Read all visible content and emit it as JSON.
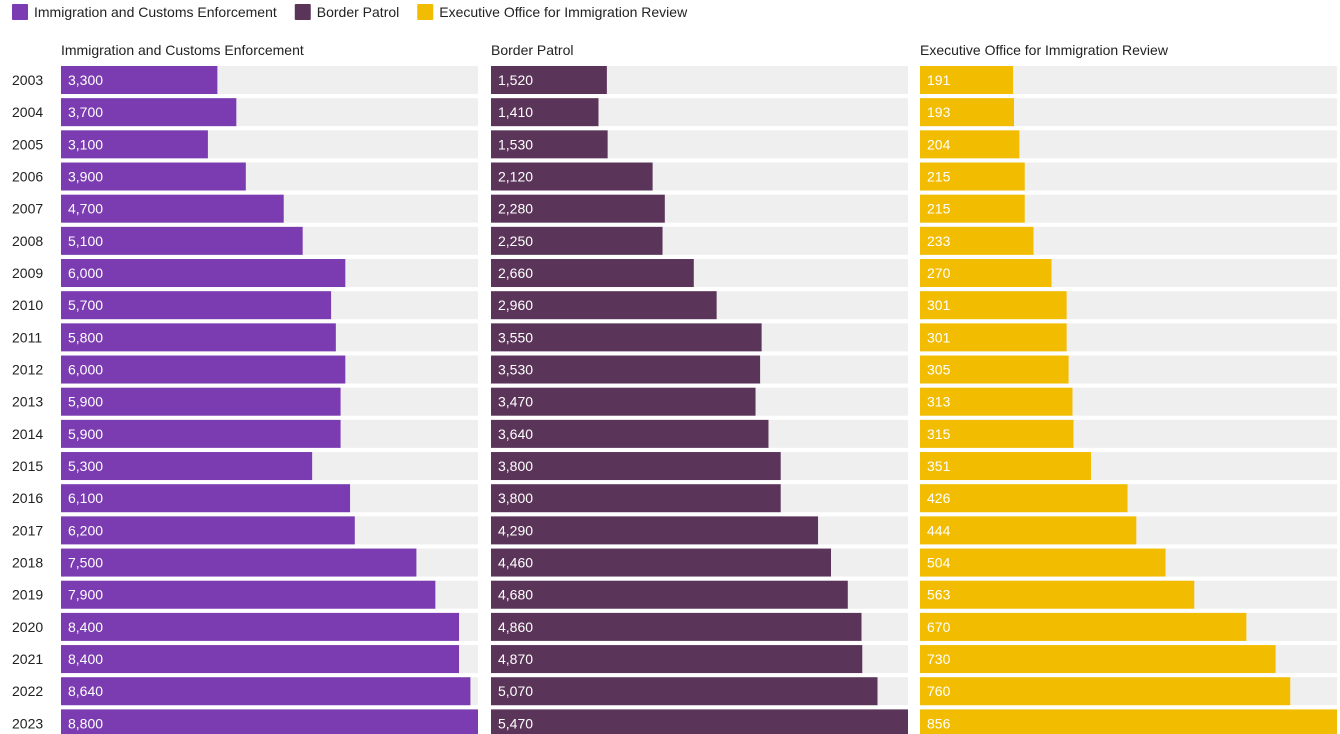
{
  "chart_data": {
    "type": "bar",
    "orientation": "horizontal",
    "layout": "small-multiples",
    "categories": [
      "2003",
      "2004",
      "2005",
      "2006",
      "2007",
      "2008",
      "2009",
      "2010",
      "2011",
      "2012",
      "2013",
      "2014",
      "2015",
      "2016",
      "2017",
      "2018",
      "2019",
      "2020",
      "2021",
      "2022",
      "2023"
    ],
    "series": [
      {
        "name": "Immigration and Customs Enforcement",
        "color": "#7a3cb0",
        "values": [
          3300,
          3700,
          3100,
          3900,
          4700,
          5100,
          6000,
          5700,
          5800,
          6000,
          5900,
          5900,
          5300,
          6100,
          6200,
          7500,
          7900,
          8400,
          8400,
          8640,
          8800
        ],
        "labels": [
          "3,300",
          "3,700",
          "3,100",
          "3,900",
          "4,700",
          "5,100",
          "6,000",
          "5,700",
          "5,800",
          "6,000",
          "5,900",
          "5,900",
          "5,300",
          "6,100",
          "6,200",
          "7,500",
          "7,900",
          "8,400",
          "8,400",
          "8,640",
          "8,800"
        ]
      },
      {
        "name": "Border Patrol",
        "color": "#5b3559",
        "values": [
          1520,
          1410,
          1530,
          2120,
          2280,
          2250,
          2660,
          2960,
          3550,
          3530,
          3470,
          3640,
          3800,
          3800,
          4290,
          4460,
          4680,
          4860,
          4870,
          5070,
          5470
        ],
        "labels": [
          "1,520",
          "1,410",
          "1,530",
          "2,120",
          "2,280",
          "2,250",
          "2,660",
          "2,960",
          "3,550",
          "3,530",
          "3,470",
          "3,640",
          "3,800",
          "3,800",
          "4,290",
          "4,460",
          "4,680",
          "4,860",
          "4,870",
          "5,070",
          "5,470"
        ]
      },
      {
        "name": "Executive Office for Immigration Review",
        "color": "#f2bd00",
        "values": [
          191,
          193,
          204,
          215,
          215,
          233,
          270,
          301,
          301,
          305,
          313,
          315,
          351,
          426,
          444,
          504,
          563,
          670,
          730,
          760,
          856
        ],
        "labels": [
          "191",
          "193",
          "204",
          "215",
          "215",
          "233",
          "270",
          "301",
          "301",
          "305",
          "313",
          "315",
          "351",
          "426",
          "444",
          "504",
          "563",
          "670",
          "730",
          "760",
          "856"
        ]
      }
    ],
    "panel_max": [
      8800,
      5470,
      856
    ],
    "legend_position": "top-left",
    "background_track_color": "#efefef",
    "grid": false
  }
}
